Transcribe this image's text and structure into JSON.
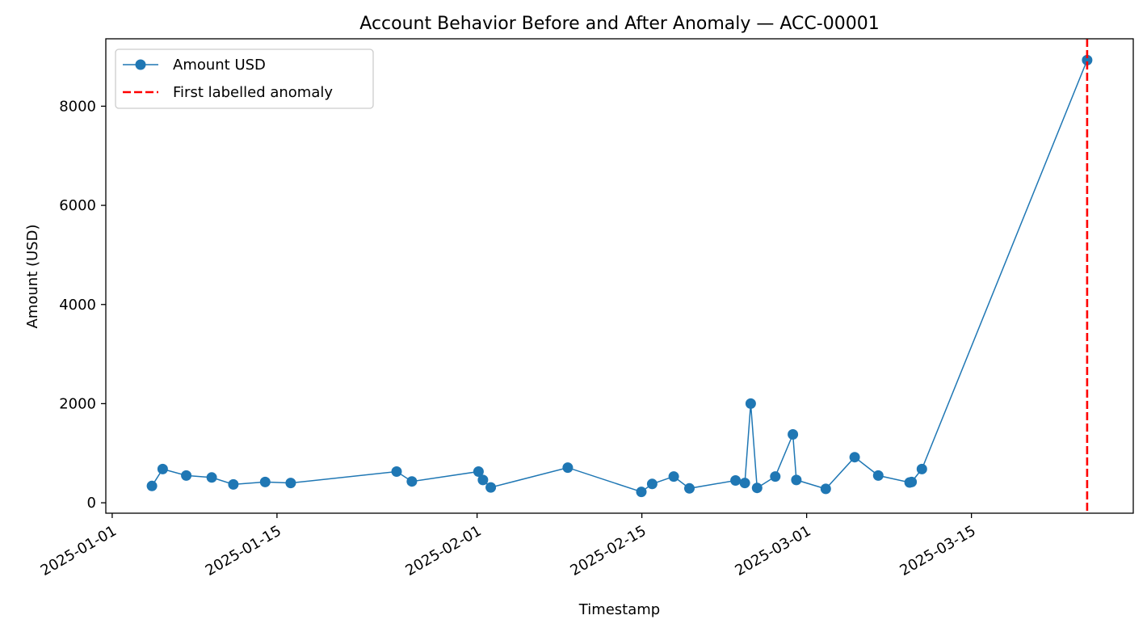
{
  "chart_data": {
    "type": "line",
    "title": "Account Behavior Before and After Anomaly — ACC-00001",
    "xlabel": "Timestamp",
    "ylabel": "Amount (USD)",
    "x_axis_type": "date",
    "xlim": [
      "2024-12-31T11:00",
      "2025-03-28T18:00"
    ],
    "ylim": [
      -210,
      9360
    ],
    "x_ticks": [
      "2025-01-01",
      "2025-01-15",
      "2025-02-01",
      "2025-02-15",
      "2025-03-01",
      "2025-03-15"
    ],
    "y_ticks": [
      0,
      2000,
      4000,
      6000,
      8000
    ],
    "grid": false,
    "legend_position": "top-left",
    "colors": {
      "series": "#1f77b4",
      "anomaly": "#ff0000"
    },
    "series": [
      {
        "name": "Amount USD",
        "points": [
          {
            "x": "2025-01-04T09:00",
            "y": 340
          },
          {
            "x": "2025-01-05T07:00",
            "y": 680
          },
          {
            "x": "2025-01-07T07:00",
            "y": 550
          },
          {
            "x": "2025-01-09T11:00",
            "y": 510
          },
          {
            "x": "2025-01-11T07:00",
            "y": 370
          },
          {
            "x": "2025-01-14T00:00",
            "y": 420
          },
          {
            "x": "2025-01-16T04:00",
            "y": 400
          },
          {
            "x": "2025-01-25T04:00",
            "y": 630
          },
          {
            "x": "2025-01-26T11:00",
            "y": 430
          },
          {
            "x": "2025-02-01T03:00",
            "y": 630
          },
          {
            "x": "2025-02-01T12:00",
            "y": 460
          },
          {
            "x": "2025-02-02T04:00",
            "y": 310
          },
          {
            "x": "2025-02-08T17:00",
            "y": 710
          },
          {
            "x": "2025-02-14T23:00",
            "y": 220
          },
          {
            "x": "2025-02-15T21:00",
            "y": 380
          },
          {
            "x": "2025-02-17T17:00",
            "y": 530
          },
          {
            "x": "2025-02-19T01:00",
            "y": 290
          },
          {
            "x": "2025-02-22T23:00",
            "y": 450
          },
          {
            "x": "2025-02-23T18:00",
            "y": 400
          },
          {
            "x": "2025-02-24T06:00",
            "y": 2000
          },
          {
            "x": "2025-02-24T19:00",
            "y": 300
          },
          {
            "x": "2025-02-26T08:00",
            "y": 530
          },
          {
            "x": "2025-02-27T20:00",
            "y": 1380
          },
          {
            "x": "2025-02-28T03:00",
            "y": 460
          },
          {
            "x": "2025-03-02T15:00",
            "y": 280
          },
          {
            "x": "2025-03-05T02:00",
            "y": 920
          },
          {
            "x": "2025-03-07T02:00",
            "y": 550
          },
          {
            "x": "2025-03-09T18:00",
            "y": 410
          },
          {
            "x": "2025-03-09T22:00",
            "y": 420
          },
          {
            "x": "2025-03-10T19:00",
            "y": 680
          },
          {
            "x": "2025-03-24T20:00",
            "y": 8930
          }
        ]
      }
    ],
    "reference_lines": [
      {
        "name": "First labelled anomaly",
        "x": "2025-03-24T20:00",
        "style": "dashed"
      }
    ]
  }
}
